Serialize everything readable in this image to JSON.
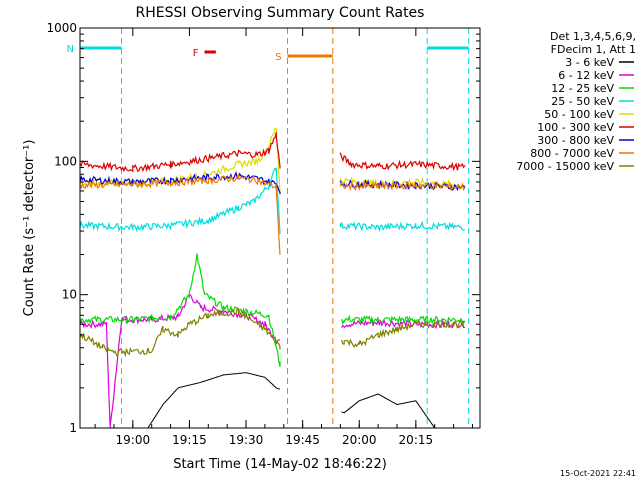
{
  "chart_data": {
    "type": "line",
    "title": "RHESSI Observing Summary Count Rates",
    "xlabel": "Start Time (14-May-02 18:46:22)",
    "ylabel": "Count Rate (s⁻¹ detector⁻¹)",
    "y_scale": "log",
    "ylim": [
      1,
      1000
    ],
    "x_unit": "minutes of day",
    "x_range": [
      "18:46",
      "20:29"
    ],
    "x_ticks": [
      {
        "label": "19:00",
        "t": 1140
      },
      {
        "label": "19:15",
        "t": 1155
      },
      {
        "label": "19:30",
        "t": 1170
      },
      {
        "label": "19:45",
        "t": 1185
      },
      {
        "label": "20:00",
        "t": 1200
      },
      {
        "label": "20:15",
        "t": 1215
      }
    ],
    "y_ticks": [
      {
        "label": "1",
        "v": 1
      },
      {
        "label": "10",
        "v": 10
      },
      {
        "label": "100",
        "v": 100
      },
      {
        "label": "1000",
        "v": 1000
      }
    ],
    "legend": {
      "position": "top-right",
      "header": [
        "Det 1,3,4,5,6,9,",
        "FDecim 1, Att 1"
      ]
    },
    "flags": [
      {
        "label": "N",
        "color": "#00dddd",
        "segments": [
          [
            "18:46",
            "18:57"
          ],
          [
            "20:18",
            "20:29"
          ]
        ],
        "boundaries": [
          "18:57",
          "20:18",
          "20:29"
        ]
      },
      {
        "label": "F",
        "color": "#dd0000",
        "segments": [
          [
            "19:19",
            "19:22"
          ]
        ],
        "boundaries": []
      },
      {
        "label": "S",
        "color": "#ee7700",
        "segments": [
          [
            "19:41",
            "19:53"
          ]
        ],
        "boundaries": [
          "19:41",
          "19:53"
        ]
      }
    ],
    "data_gap": [
      "19:39",
      "19:55"
    ],
    "series": [
      {
        "name": "3 - 6 keV",
        "color": "#000000",
        "points": [
          [
            "18:46",
            null
          ],
          [
            "19:04",
            1.0
          ],
          [
            "19:08",
            1.5
          ],
          [
            "19:12",
            2.0
          ],
          [
            "19:18",
            2.2
          ],
          [
            "19:24",
            2.5
          ],
          [
            "19:30",
            2.6
          ],
          [
            "19:35",
            2.4
          ],
          [
            "19:38",
            2.0
          ],
          [
            "19:56",
            1.3
          ],
          [
            "20:00",
            1.6
          ],
          [
            "20:05",
            1.8
          ],
          [
            "20:10",
            1.5
          ],
          [
            "20:15",
            1.6
          ],
          [
            "20:20",
            1.0
          ]
        ]
      },
      {
        "name": "6 - 12 keV",
        "color": "#dd00dd",
        "points": [
          [
            "18:46",
            6.0
          ],
          [
            "18:53",
            6.0
          ],
          [
            "18:54",
            1.0
          ],
          [
            "18:57",
            6.5
          ],
          [
            "19:05",
            6.5
          ],
          [
            "19:12",
            6.8
          ],
          [
            "19:15",
            10.0
          ],
          [
            "19:18",
            8.0
          ],
          [
            "19:24",
            7.5
          ],
          [
            "19:30",
            7.0
          ],
          [
            "19:35",
            6.0
          ],
          [
            "19:38",
            4.5
          ],
          [
            "19:56",
            6.0
          ],
          [
            "20:05",
            6.2
          ],
          [
            "20:15",
            6.0
          ],
          [
            "20:28",
            6.0
          ]
        ]
      },
      {
        "name": "12 - 25 keV",
        "color": "#00dd00",
        "points": [
          [
            "18:46",
            6.5
          ],
          [
            "19:00",
            6.5
          ],
          [
            "19:10",
            6.8
          ],
          [
            "19:15",
            10.0
          ],
          [
            "19:17",
            20.0
          ],
          [
            "19:19",
            10.0
          ],
          [
            "19:24",
            8.0
          ],
          [
            "19:30",
            7.5
          ],
          [
            "19:36",
            7.0
          ],
          [
            "19:39",
            3.0
          ],
          [
            "19:56",
            6.5
          ],
          [
            "20:05",
            6.5
          ],
          [
            "20:18",
            6.5
          ],
          [
            "20:28",
            6.5
          ]
        ]
      },
      {
        "name": "25 - 50 keV",
        "color": "#00dddd",
        "points": [
          [
            "18:46",
            33
          ],
          [
            "19:00",
            32
          ],
          [
            "19:10",
            33
          ],
          [
            "19:20",
            36
          ],
          [
            "19:28",
            45
          ],
          [
            "19:32",
            50
          ],
          [
            "19:36",
            65
          ],
          [
            "19:38",
            90
          ],
          [
            "19:39",
            30
          ],
          [
            "19:55",
            33
          ],
          [
            "20:05",
            32
          ],
          [
            "20:15",
            33
          ],
          [
            "20:28",
            32
          ]
        ]
      },
      {
        "name": "50 - 100 keV",
        "color": "#dddd00",
        "points": [
          [
            "18:46",
            70
          ],
          [
            "19:00",
            68
          ],
          [
            "19:10",
            72
          ],
          [
            "19:20",
            80
          ],
          [
            "19:28",
            95
          ],
          [
            "19:33",
            100
          ],
          [
            "19:36",
            130
          ],
          [
            "19:38",
            180
          ],
          [
            "19:39",
            60
          ],
          [
            "19:55",
            72
          ],
          [
            "20:05",
            68
          ],
          [
            "20:15",
            70
          ],
          [
            "20:28",
            66
          ]
        ]
      },
      {
        "name": "100 - 300 keV",
        "color": "#dd0000",
        "points": [
          [
            "18:46",
            95
          ],
          [
            "19:00",
            88
          ],
          [
            "19:10",
            95
          ],
          [
            "19:20",
            105
          ],
          [
            "19:28",
            115
          ],
          [
            "19:33",
            112
          ],
          [
            "19:36",
            120
          ],
          [
            "19:38",
            160
          ],
          [
            "19:39",
            90
          ],
          [
            "19:55",
            110
          ],
          [
            "19:58",
            95
          ],
          [
            "20:05",
            92
          ],
          [
            "20:15",
            95
          ],
          [
            "20:28",
            90
          ]
        ]
      },
      {
        "name": "300 - 800 keV",
        "color": "#0000dd",
        "points": [
          [
            "18:46",
            73
          ],
          [
            "19:00",
            70
          ],
          [
            "19:10",
            72
          ],
          [
            "19:20",
            76
          ],
          [
            "19:28",
            78
          ],
          [
            "19:33",
            74
          ],
          [
            "19:38",
            68
          ],
          [
            "19:39",
            60
          ],
          [
            "19:55",
            68
          ],
          [
            "20:05",
            67
          ],
          [
            "20:15",
            66
          ],
          [
            "20:28",
            64
          ]
        ]
      },
      {
        "name": "800 - 7000 keV",
        "color": "#ee7700",
        "points": [
          [
            "18:46",
            66
          ],
          [
            "19:00",
            67
          ],
          [
            "19:10",
            69
          ],
          [
            "19:20",
            72
          ],
          [
            "19:28",
            75
          ],
          [
            "19:33",
            72
          ],
          [
            "19:38",
            64
          ],
          [
            "19:39",
            20
          ],
          [
            "19:55",
            65
          ],
          [
            "20:05",
            65
          ],
          [
            "20:15",
            66
          ],
          [
            "20:28",
            64
          ]
        ]
      },
      {
        "name": "7000 - 15000 keV",
        "color": "#808000",
        "points": [
          [
            "18:46",
            5.0
          ],
          [
            "18:49",
            4.5
          ],
          [
            "18:52",
            4.0
          ],
          [
            "18:55",
            3.7
          ],
          [
            "19:05",
            3.8
          ],
          [
            "19:08",
            5.5
          ],
          [
            "19:12",
            5.0
          ],
          [
            "19:15",
            6.0
          ],
          [
            "19:20",
            7.0
          ],
          [
            "19:28",
            7.5
          ],
          [
            "19:35",
            5.5
          ],
          [
            "19:38",
            4.5
          ],
          [
            "19:39",
            4.0
          ],
          [
            "19:56",
            4.5
          ],
          [
            "20:00",
            4.2
          ],
          [
            "20:05",
            5.0
          ],
          [
            "20:10",
            5.5
          ],
          [
            "20:15",
            6.0
          ],
          [
            "20:28",
            6.0
          ]
        ]
      }
    ]
  },
  "footer_timestamp": "15-Oct-2021 22:41"
}
